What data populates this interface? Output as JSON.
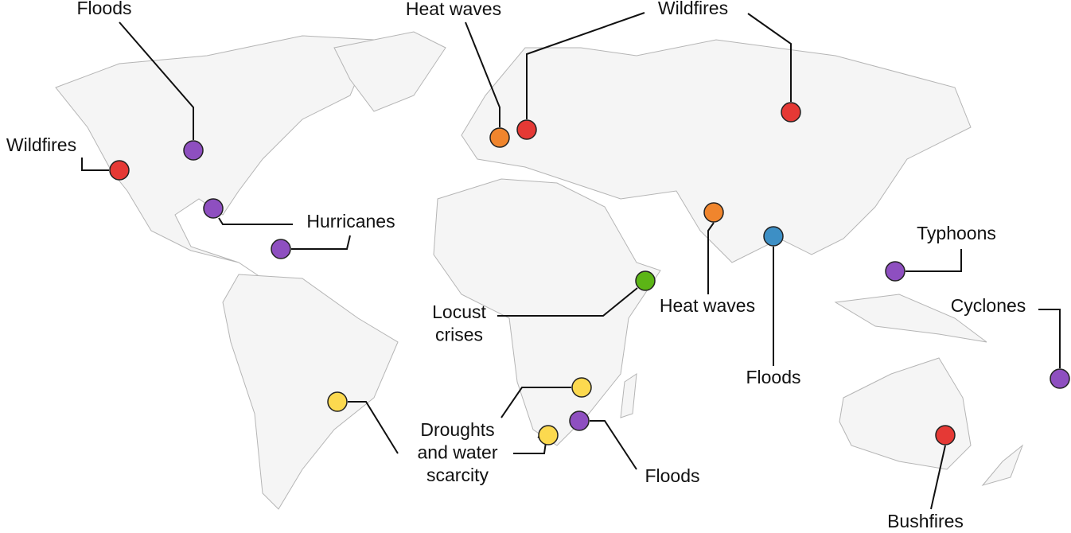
{
  "map": {
    "markers": [
      {
        "label": [
          "Floods"
        ],
        "color": "#8e4fc0"
      },
      {
        "label": [
          "Wildfires"
        ],
        "color": "#e53935"
      },
      {
        "label": [
          "Hurricanes"
        ],
        "color": "#8e4fc0"
      },
      {
        "label": [
          "Heat waves"
        ],
        "color": "#f0852d"
      },
      {
        "label": [
          "Wildfires"
        ],
        "color": "#e53935"
      },
      {
        "label": [
          "Heat waves"
        ],
        "color": "#f0852d"
      },
      {
        "label": [
          "Floods"
        ],
        "color": "#3d8fc5"
      },
      {
        "label": [
          "Typhoons"
        ],
        "color": "#8e4fc0"
      },
      {
        "label": [
          "Cyclones"
        ],
        "color": "#8e4fc0"
      },
      {
        "label": [
          "Bushfires"
        ],
        "color": "#e53935"
      },
      {
        "label": [
          "Locust",
          "crises"
        ],
        "color": "#5cb516"
      },
      {
        "label": [
          "Droughts",
          "and water",
          "scarcity"
        ],
        "color": "#fcd94f"
      },
      {
        "label": [
          "Floods"
        ],
        "color": "#8e4fc0"
      }
    ]
  }
}
